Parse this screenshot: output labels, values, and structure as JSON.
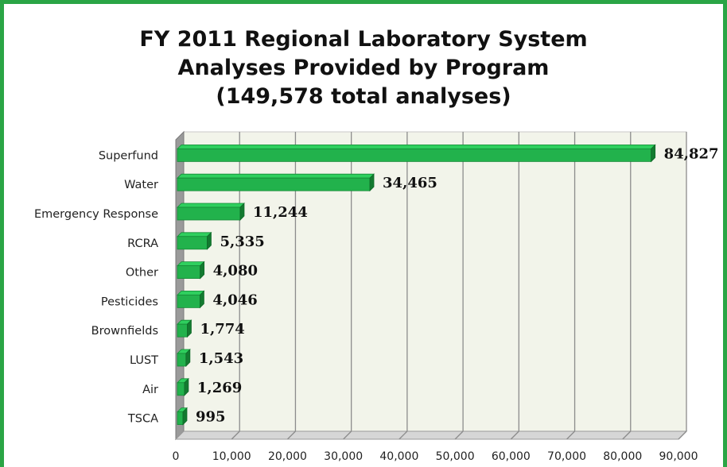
{
  "chart_data": {
    "type": "bar",
    "orientation": "horizontal",
    "title_lines": [
      "FY 2011 Regional Laboratory System",
      "Analyses Provided by Program",
      "(149,578 total analyses)"
    ],
    "categories": [
      "Superfund",
      "Water",
      "Emergency Response",
      "RCRA",
      "Other",
      "Pesticides",
      "Brownfields",
      "LUST",
      "Air",
      "TSCA"
    ],
    "values": [
      84827,
      34465,
      11244,
      5335,
      4080,
      4046,
      1774,
      1543,
      1269,
      995
    ],
    "data_labels": [
      "84,827",
      "34,465",
      "11,244",
      "5,335",
      "4,080",
      "4,046",
      "1,774",
      "1,543",
      "1,269",
      "995"
    ],
    "xlim": [
      0,
      90000
    ],
    "x_ticks": [
      0,
      10000,
      20000,
      30000,
      40000,
      50000,
      60000,
      70000,
      80000,
      90000
    ],
    "x_tick_labels": [
      "0",
      "10,000",
      "20,000",
      "30,000",
      "40,000",
      "50,000",
      "60,000",
      "70,000",
      "80,000",
      "90,000"
    ],
    "grid": true,
    "legend": "none",
    "colors": {
      "bar": "#22b24c",
      "bar_top": "#2fcf5e",
      "bar_side": "#137a30",
      "border": "#2aa545",
      "plot_wall": "#f2f4ea",
      "floor": "#d6d6d6",
      "gridline": "#8c8c8c"
    },
    "style": "3d"
  }
}
